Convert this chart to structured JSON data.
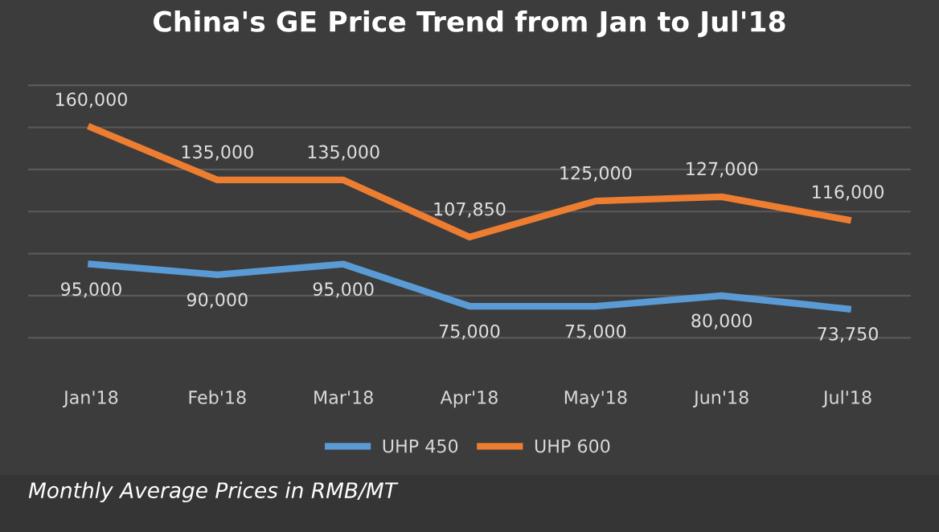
{
  "chart_data": {
    "type": "line",
    "title": "China's GE Price Trend from Jan to Jul'18",
    "categories": [
      "Jan'18",
      "Feb'18",
      "Mar'18",
      "Apr'18",
      "May'18",
      "Jun'18",
      "Jul'18"
    ],
    "series": [
      {
        "name": "UHP 450",
        "color": "#5b9bd5",
        "values": [
          95000,
          90000,
          95000,
          75000,
          75000,
          80000,
          73750
        ],
        "value_labels": [
          "95,000",
          "90,000",
          "95,000",
          "75,000",
          "75,000",
          "80,000",
          "73,750"
        ]
      },
      {
        "name": "UHP 600",
        "color": "#ed7d31",
        "values": [
          160000,
          135000,
          135000,
          107850,
          125000,
          127000,
          116000
        ],
        "value_labels": [
          "160,000",
          "135,000",
          "135,000",
          "107,850",
          "125,000",
          "127,000",
          "116,000"
        ]
      }
    ],
    "tick_labels": "x",
    "grid": "y",
    "legend": "bottom",
    "line_style": "solid",
    "marker": "none",
    "annotations": [
      "Monthly Average Prices in RMB/MT"
    ]
  }
}
